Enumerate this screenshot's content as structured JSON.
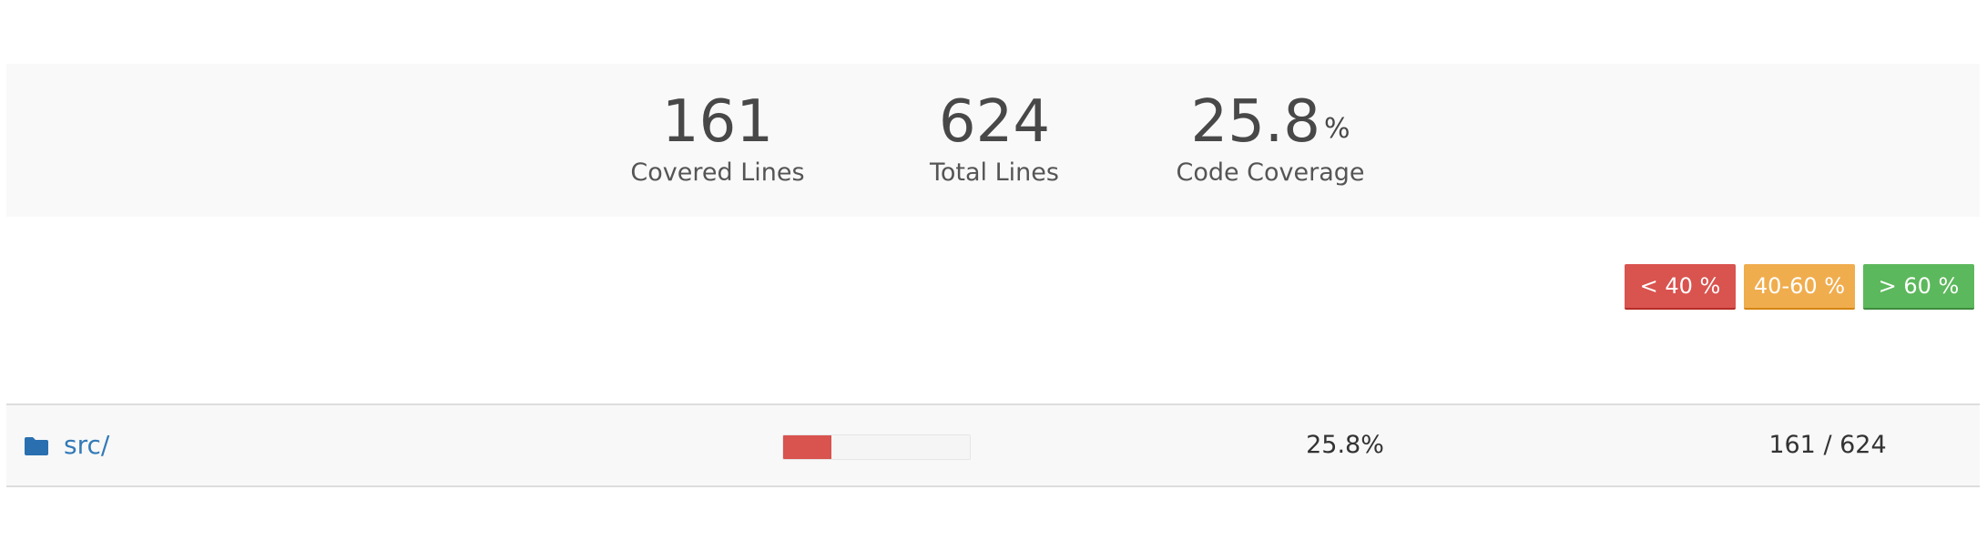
{
  "summary": {
    "covered": {
      "value": "161",
      "label": "Covered Lines"
    },
    "total": {
      "value": "624",
      "label": "Total Lines"
    },
    "coverage": {
      "value": "25.8",
      "unit": "%",
      "label": "Code Coverage"
    }
  },
  "legend": {
    "low": {
      "label": "< 40 %",
      "color": "#d9534f"
    },
    "mid": {
      "label": "40-60 %",
      "color": "#f0ad4e"
    },
    "high": {
      "label": "> 60 %",
      "color": "#5cb85c"
    }
  },
  "rows": [
    {
      "icon": "folder-icon",
      "name": "src/",
      "coverage_fraction": 0.258,
      "percent": "25.8%",
      "lines": "161 / 624"
    }
  ]
}
